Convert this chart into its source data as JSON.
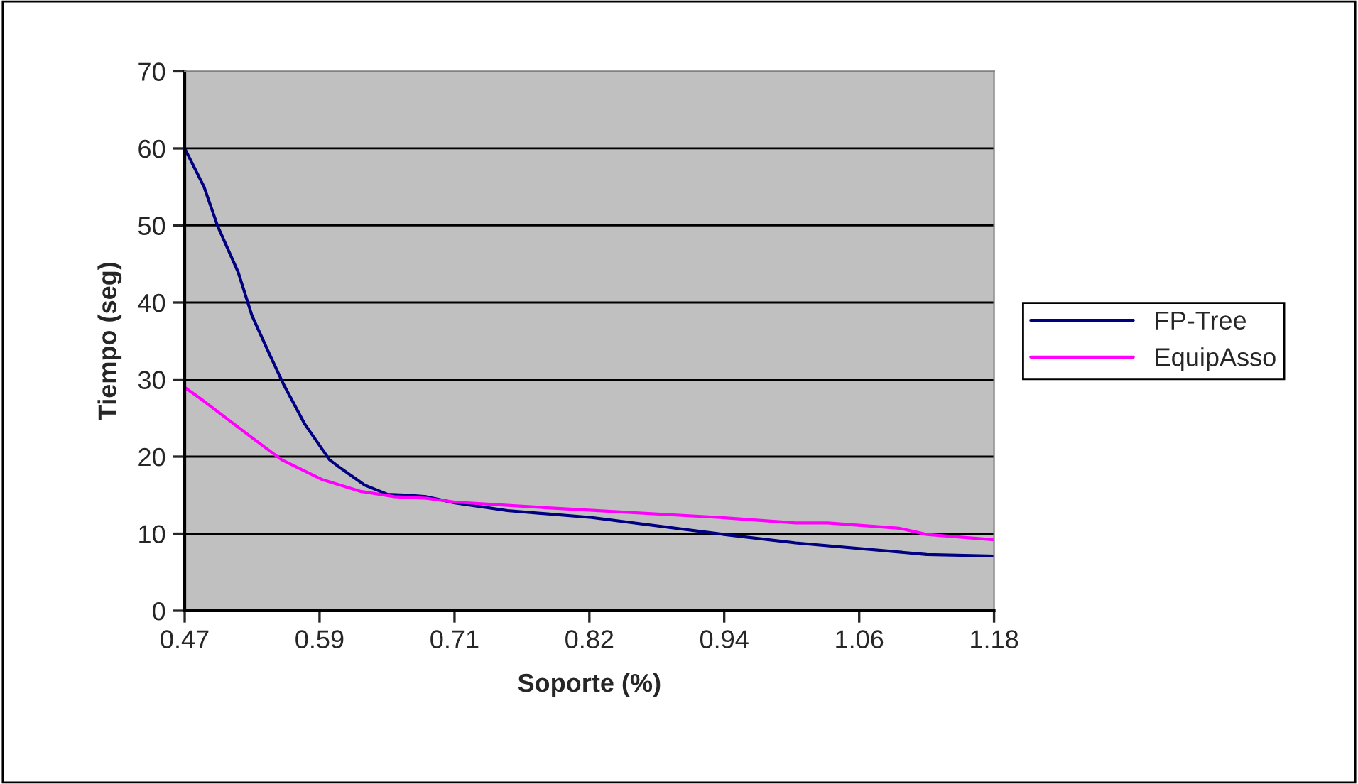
{
  "chart_data": {
    "type": "line",
    "xlabel": "Soporte (%)",
    "ylabel": "Tiempo (seg)",
    "series": [
      {
        "name": "FP-Tree",
        "color": "#000080",
        "x": [
          0.47,
          0.487,
          0.499,
          0.517,
          0.529,
          0.545,
          0.557,
          0.575,
          0.597,
          0.605,
          0.628,
          0.648,
          0.666,
          0.682,
          0.707,
          0.753,
          0.827,
          0.943,
          1.006,
          1.121,
          1.18
        ],
        "values": [
          60,
          55,
          49.9,
          43.9,
          38.3,
          33.1,
          29.3,
          24.3,
          19.6,
          18.7,
          16.3,
          15.1,
          15.0,
          14.8,
          14.0,
          13.0,
          12.1,
          9.9,
          8.8,
          7.3,
          7.1
        ]
      },
      {
        "name": "EquipAsso",
        "color": "#ff00ff",
        "x": [
          0.47,
          0.486,
          0.526,
          0.555,
          0.591,
          0.624,
          0.654,
          0.682,
          0.707,
          0.794,
          0.94,
          1.006,
          1.034,
          1.097,
          1.121,
          1.18
        ],
        "values": [
          29,
          27.3,
          22.8,
          19.6,
          17.0,
          15.5,
          14.8,
          14.6,
          14.1,
          13.3,
          12.1,
          11.4,
          11.4,
          10.7,
          9.9,
          9.2
        ]
      }
    ],
    "xlim": [
      0.47,
      1.18
    ],
    "xticks": [
      0.47,
      {
        "value": 0.5883,
        "label": "0.59"
      },
      {
        "value": 0.7067,
        "label": "0.71"
      },
      {
        "value": 0.825,
        "label": "0.82"
      },
      {
        "value": 0.9433,
        "label": "0.94"
      },
      {
        "value": 1.0617,
        "label": "1.06"
      },
      1.18
    ],
    "ylim": [
      0,
      70
    ],
    "yticks": [
      0,
      10,
      20,
      30,
      40,
      50,
      60,
      70
    ],
    "grid": "y",
    "legend": "right",
    "marker": "none",
    "line_style": "solid"
  }
}
